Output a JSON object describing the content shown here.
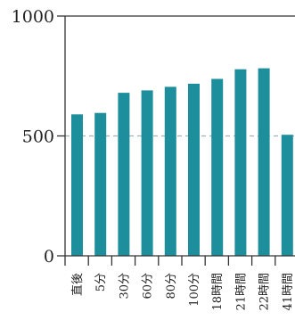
{
  "chart_data": {
    "type": "bar",
    "title": "",
    "xlabel": "",
    "ylabel": "",
    "categories": [
      "直後",
      "5分",
      "30分",
      "60分",
      "80分",
      "100分",
      "18時間",
      "21時間",
      "22時間",
      "41時間"
    ],
    "values": [
      590,
      596,
      680,
      690,
      705,
      718,
      738,
      778,
      782,
      505
    ],
    "ylim": [
      0,
      1000
    ],
    "yticks": [
      0,
      500,
      1000
    ],
    "ytick_labels": [
      "0",
      "500",
      "1000"
    ],
    "reference_line": 500,
    "grid": false,
    "colors": {
      "bar": "#1d8f9c",
      "axis": "#333333",
      "reference": "#9fb3b5"
    }
  }
}
